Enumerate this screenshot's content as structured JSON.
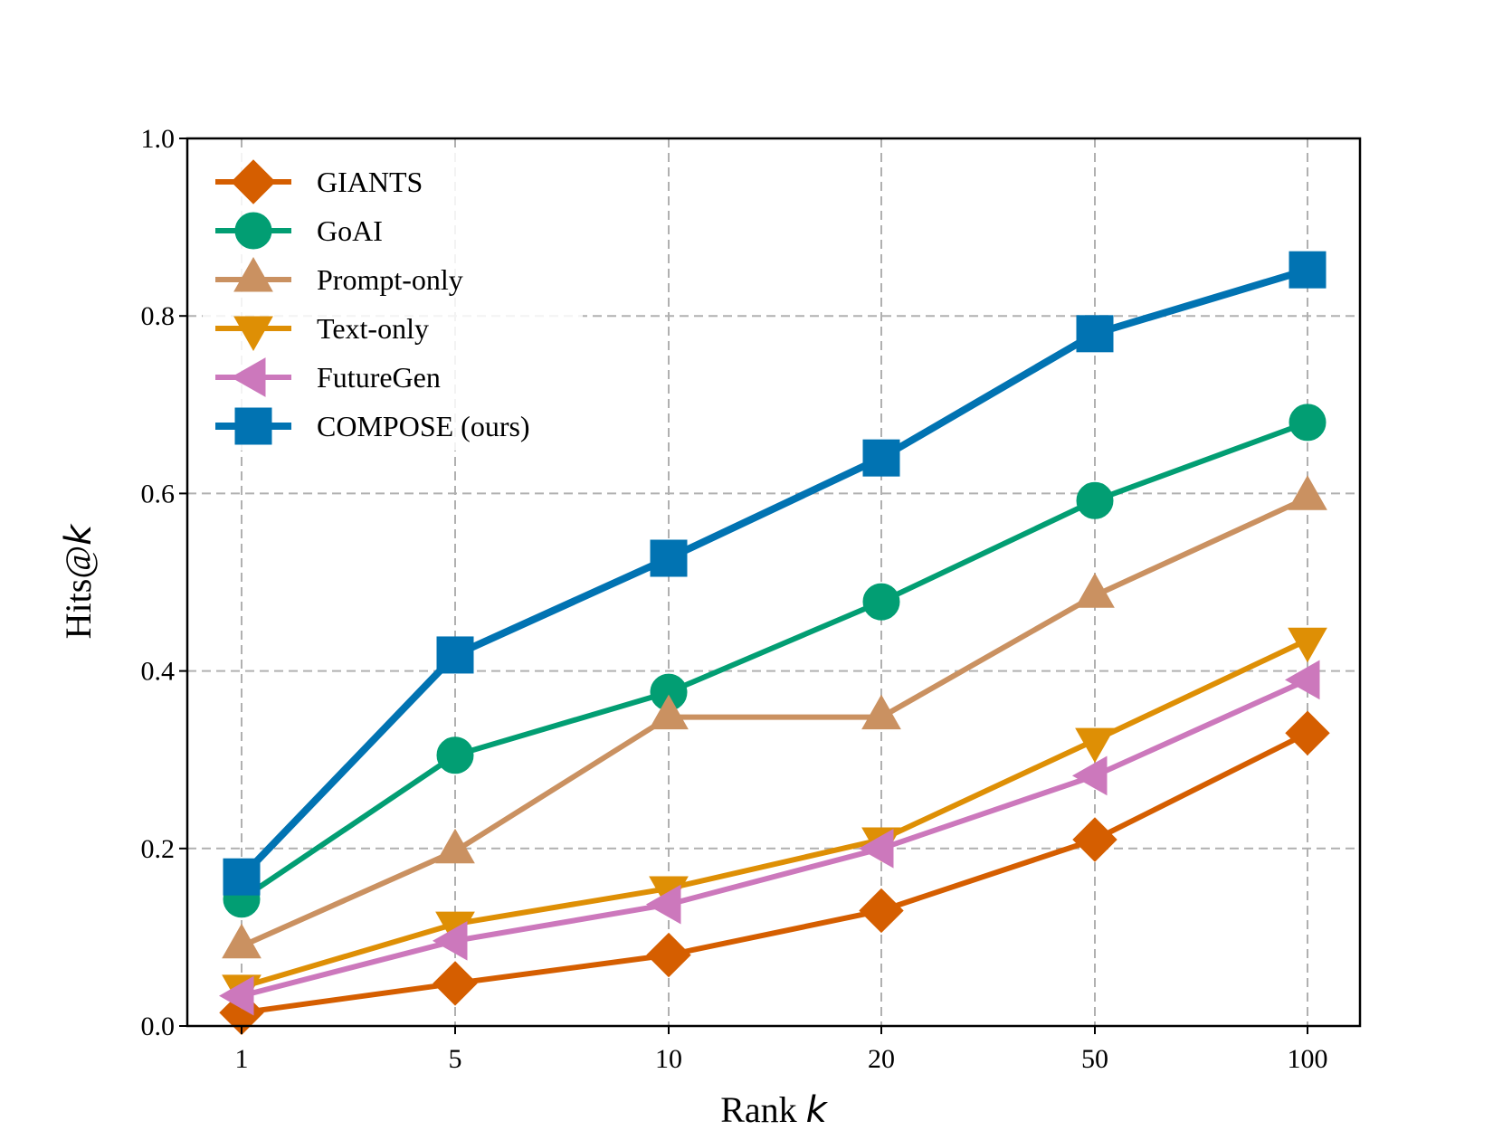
{
  "chart_data": {
    "type": "line",
    "categories": [
      "1",
      "5",
      "10",
      "20",
      "50",
      "100"
    ],
    "xlabel": "Rank",
    "xlabel_var": "k",
    "ylabel": "Hits@",
    "ylabel_var": "k",
    "ylim": [
      0.0,
      1.0
    ],
    "yticks": [
      "0.0",
      "0.2",
      "0.4",
      "0.6",
      "0.8",
      "1.0"
    ],
    "grid": true,
    "legend_position": "top-left",
    "series": [
      {
        "name": "GIANTS",
        "color": "#d55e00",
        "marker": "diamond",
        "values": [
          0.015,
          0.048,
          0.08,
          0.13,
          0.21,
          0.33
        ]
      },
      {
        "name": "GoAI",
        "color": "#029e73",
        "marker": "circle",
        "values": [
          0.143,
          0.305,
          0.376,
          0.478,
          0.592,
          0.68
        ]
      },
      {
        "name": "Prompt-only",
        "color": "#ca9161",
        "marker": "triangle-up",
        "values": [
          0.09,
          0.197,
          0.348,
          0.348,
          0.485,
          0.595
        ]
      },
      {
        "name": "Text-only",
        "color": "#de8f05",
        "marker": "triangle-down",
        "values": [
          0.044,
          0.115,
          0.155,
          0.21,
          0.322,
          0.435
        ]
      },
      {
        "name": "FutureGen",
        "color": "#cc78bc",
        "marker": "triangle-left",
        "values": [
          0.034,
          0.096,
          0.137,
          0.2,
          0.282,
          0.39
        ]
      },
      {
        "name": "COMPOSE (ours)",
        "color": "#0173b2",
        "marker": "square",
        "values": [
          0.168,
          0.418,
          0.527,
          0.64,
          0.78,
          0.852
        ]
      }
    ]
  }
}
